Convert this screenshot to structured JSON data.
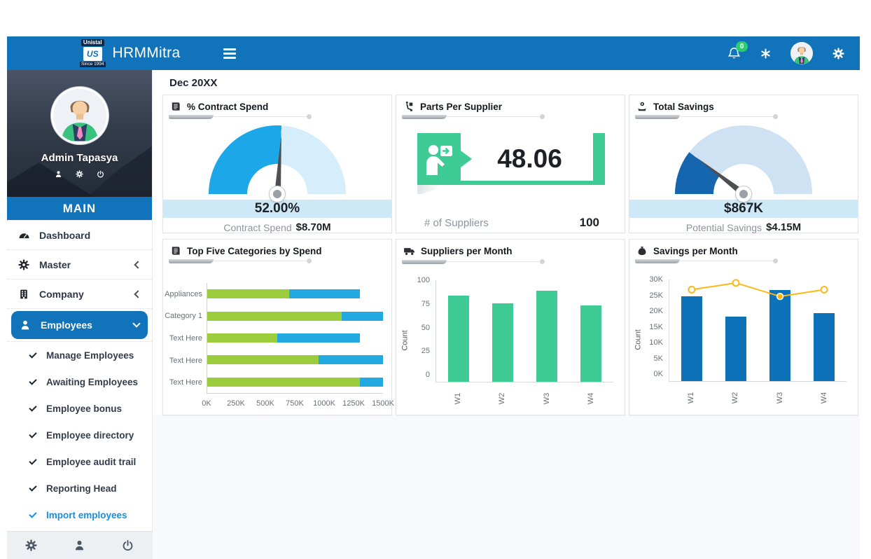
{
  "header": {
    "logo_top": "Unistal",
    "logo_mark": "US",
    "logo_bottom": "Since 1994",
    "app_title": "HRMMitra",
    "notification_count": "0"
  },
  "sidebar": {
    "user_name": "Admin Tapasya",
    "section_label": "MAIN",
    "items": [
      {
        "label": "Dashboard",
        "icon": "speedometer-icon"
      },
      {
        "label": "Master",
        "icon": "gear-icon",
        "chevron": "left"
      },
      {
        "label": "Company",
        "icon": "building-icon",
        "chevron": "left"
      },
      {
        "label": "Employees",
        "icon": "person-icon",
        "chevron": "down",
        "active": true
      }
    ],
    "submenu": [
      {
        "label": "Manage Employees"
      },
      {
        "label": "Awaiting Employees"
      },
      {
        "label": "Employee bonus"
      },
      {
        "label": "Employee directory"
      },
      {
        "label": "Employee audit trail"
      },
      {
        "label": "Reporting Head"
      },
      {
        "label": "Import employees",
        "active": true
      }
    ]
  },
  "main": {
    "period_label": "Dec 20XX"
  },
  "chart_data": [
    {
      "type": "gauge",
      "title": "% Contract Spend",
      "value": 52.0,
      "range": [
        0,
        100
      ],
      "unit": "%",
      "display": "52.00%",
      "caption_label": "Contract Spend",
      "caption_value": "$8.70M",
      "colors": {
        "fill": "#1ba7e8",
        "track": "#d6edfb"
      }
    },
    {
      "type": "kpi",
      "title": "Parts Per Supplier",
      "value": 48.06,
      "display": "48.06",
      "caption_label": "# of Suppliers",
      "caption_value": "100",
      "accent": "#3ecb96"
    },
    {
      "type": "gauge",
      "title": "Total Savings",
      "value": 867,
      "range": [
        0,
        4150
      ],
      "unit": "$K",
      "display": "$867K",
      "caption_label": "Potential Savings",
      "caption_value": "$4.15M",
      "colors": {
        "fill": "#1566ae",
        "track": "#cfe2f4"
      }
    },
    {
      "type": "bar",
      "orientation": "horizontal",
      "stacked": true,
      "title": "Top Five Categories by Spend",
      "categories": [
        "Appliances",
        "Category 1",
        "Text Here",
        "Text Here",
        "Text Here"
      ],
      "series": [
        {
          "name": "green-segment",
          "color": "#9bcc3c",
          "values": [
            700,
            1150,
            600,
            950,
            1300
          ]
        },
        {
          "name": "blue-segment",
          "color": "#23a9e1",
          "values": [
            600,
            350,
            700,
            550,
            200
          ]
        }
      ],
      "xlim": [
        0,
        1500
      ],
      "xticks": [
        "0K",
        "250K",
        "500K",
        "750K",
        "1000K",
        "1250K",
        "1500K"
      ],
      "unit": "K",
      "grid": false
    },
    {
      "type": "bar",
      "title": "Suppliers per Month",
      "categories": [
        "W1",
        "W2",
        "W3",
        "W4"
      ],
      "values": [
        85,
        77,
        90,
        75
      ],
      "ylabel": "Count",
      "ylim": [
        0,
        100
      ],
      "yticks": [
        "100",
        "75",
        "50",
        "25",
        "0"
      ],
      "color": "#3ecb96",
      "grid": false
    },
    {
      "type": "bar+line",
      "title": "Savings per Month",
      "categories": [
        "W1",
        "W2",
        "W3",
        "W4"
      ],
      "bar_values": [
        25,
        19,
        27,
        20
      ],
      "line_values": [
        27,
        29,
        25,
        27
      ],
      "unit": "K",
      "ylabel": "Count",
      "ylim": [
        0,
        30
      ],
      "yticks": [
        "30K",
        "25K",
        "20K",
        "15K",
        "10K",
        "5K",
        "0K"
      ],
      "bar_color": "#0e72b8",
      "line_color": "#fdb813",
      "filled_marker_index": 2,
      "grid": false
    }
  ]
}
